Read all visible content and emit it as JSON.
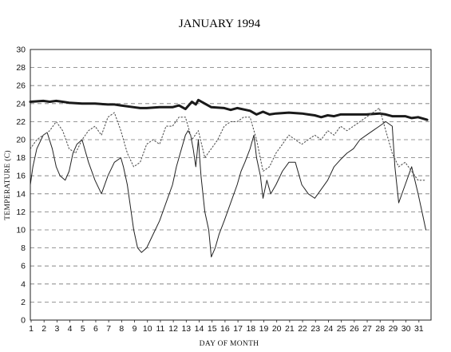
{
  "chart_data": {
    "type": "line",
    "title": "JANUARY 1994",
    "xlabel": "DAY OF MONTH",
    "ylabel": "TEMPERATURE (C)",
    "xlim": [
      1,
      32
    ],
    "ylim": [
      0,
      30
    ],
    "y_ticks": [
      "0",
      "2",
      "4",
      "6",
      "8",
      "10",
      "12",
      "14",
      "16",
      "18",
      "20",
      "22",
      "24",
      "26",
      "28",
      "30"
    ],
    "x_ticks": [
      "1",
      "2",
      "3",
      "4",
      "5",
      "6",
      "7",
      "8",
      "9",
      "10",
      "11",
      "12",
      "13",
      "14",
      "15",
      "16",
      "17",
      "18",
      "19",
      "20",
      "21",
      "22",
      "23",
      "24",
      "25",
      "26",
      "27",
      "28",
      "29",
      "30",
      "31"
    ],
    "grid": "horizontal dashed",
    "legend": "none",
    "series": [
      {
        "style": "thick",
        "color": "#1a1a1a",
        "x": [
          1,
          2,
          2.5,
          3,
          3.5,
          4,
          5,
          6,
          7,
          7.5,
          8,
          9,
          9.5,
          10,
          11,
          12,
          12.5,
          13,
          13.5,
          13.8,
          14,
          15,
          16,
          16.5,
          17,
          18,
          18.5,
          19,
          19.5,
          20,
          21,
          22,
          22.5,
          23,
          23.5,
          24,
          24.5,
          25,
          26,
          27,
          28,
          28.5,
          29,
          30,
          30.5,
          31,
          31.7
        ],
        "y": [
          24.2,
          24.3,
          24.2,
          24.3,
          24.2,
          24.1,
          24.0,
          24.0,
          23.9,
          23.9,
          23.8,
          23.6,
          23.5,
          23.5,
          23.6,
          23.6,
          23.8,
          23.4,
          24.2,
          23.9,
          24.4,
          23.6,
          23.5,
          23.3,
          23.5,
          23.2,
          22.8,
          23.1,
          22.8,
          22.9,
          23.0,
          22.9,
          22.8,
          22.7,
          22.5,
          22.7,
          22.6,
          22.8,
          22.8,
          22.8,
          22.9,
          22.8,
          22.6,
          22.6,
          22.4,
          22.5,
          22.2
        ]
      },
      {
        "style": "thin",
        "color": "#222222",
        "x": [
          1,
          1.2,
          1.5,
          2,
          2.3,
          2.7,
          3,
          3.3,
          3.7,
          4,
          4.3,
          4.6,
          5,
          5.2,
          5.5,
          6,
          6.5,
          7,
          7.5,
          8,
          8.2,
          8.5,
          8.8,
          9,
          9.3,
          9.6,
          10,
          10.5,
          11,
          11.5,
          12,
          12.3,
          12.6,
          13,
          13.2,
          13.4,
          13.6,
          13.8,
          14,
          14.2,
          14.5,
          14.8,
          15,
          15.3,
          15.6,
          16,
          16.5,
          17,
          17.3,
          17.6,
          18,
          18.3,
          18.5,
          18.8,
          19,
          19.3,
          19.6,
          20,
          20.5,
          21,
          21.5,
          22,
          22.5,
          23,
          23.5,
          24,
          24.5,
          25,
          25.5,
          26,
          26.5,
          27,
          27.5,
          28,
          28.5,
          29,
          29.2,
          29.5,
          30,
          30.5,
          31,
          31.3,
          31.6
        ],
        "y": [
          15,
          17,
          19,
          20.5,
          20.8,
          19,
          17,
          16,
          15.5,
          16.5,
          18.5,
          19.5,
          20,
          19,
          17.5,
          15.5,
          14,
          16,
          17.5,
          18,
          17,
          15,
          12,
          10,
          8,
          7.5,
          8,
          9.5,
          11,
          13,
          15,
          17,
          18.5,
          20.5,
          21,
          20.5,
          19,
          17,
          20,
          16,
          12,
          10,
          7,
          8,
          9.5,
          11,
          13,
          15,
          16.5,
          17.5,
          19,
          20.5,
          18,
          16,
          13.5,
          15.5,
          14,
          15,
          16.5,
          17.5,
          17.5,
          15,
          14,
          13.5,
          14.5,
          15.5,
          17,
          17.8,
          18.5,
          19,
          20,
          20.5,
          21,
          21.5,
          22,
          21.5,
          17,
          13,
          15,
          17,
          14,
          12,
          10
        ]
      },
      {
        "style": "dotted",
        "color": "#555555",
        "x": [
          1,
          1.5,
          2,
          2.5,
          3,
          3.5,
          4,
          4.5,
          5,
          5.5,
          6,
          6.5,
          7,
          7.5,
          8,
          8.5,
          9,
          9.5,
          10,
          10.5,
          11,
          11.5,
          12,
          12.5,
          13,
          13.5,
          14,
          14.5,
          15,
          15.5,
          16,
          16.5,
          17,
          17.5,
          18,
          18.5,
          19,
          19.5,
          20,
          20.5,
          21,
          21.5,
          22,
          22.5,
          23,
          23.5,
          24,
          24.5,
          25,
          25.5,
          26,
          26.5,
          27,
          27.5,
          28,
          28.5,
          29,
          29.5,
          30,
          30.5,
          31,
          31.5
        ],
        "y": [
          19,
          20,
          20.5,
          21,
          22,
          21,
          19,
          18.5,
          20,
          21,
          21.5,
          20.5,
          22.5,
          23,
          21,
          18.5,
          17,
          17.5,
          19.5,
          20,
          19.5,
          21.5,
          21.5,
          22.5,
          22.5,
          20,
          21,
          18,
          19,
          20,
          21.5,
          22,
          22,
          22.5,
          22.5,
          20,
          16.5,
          17,
          18.5,
          19.5,
          20.5,
          20,
          19.5,
          20,
          20.5,
          20,
          21,
          20.5,
          21.5,
          21,
          21.5,
          22,
          22.5,
          23,
          23.5,
          21,
          18.5,
          17,
          17.5,
          16.5,
          15.5,
          15.5
        ]
      }
    ]
  }
}
